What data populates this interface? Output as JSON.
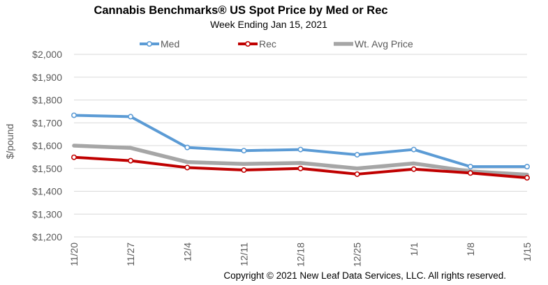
{
  "chart_data": {
    "type": "line",
    "title": "Cannabis Benchmarks® US Spot Price by Med or Rec",
    "subtitle": "Week Ending Jan 15, 2021",
    "ylabel": "$/pound",
    "xlabel": "",
    "categories": [
      "11/20",
      "11/27",
      "12/4",
      "12/11",
      "12/18",
      "12/25",
      "1/1",
      "1/8",
      "1/15"
    ],
    "yticks": [
      "$1,200",
      "$1,300",
      "$1,400",
      "$1,500",
      "$1,600",
      "$1,700",
      "$1,800",
      "$1,900",
      "$2,000"
    ],
    "ylim": [
      1200,
      2000
    ],
    "grid": true,
    "legend_position": "top",
    "series": [
      {
        "name": "Med",
        "color": "#5B9BD5",
        "values": [
          1733,
          1727,
          1592,
          1578,
          1583,
          1560,
          1583,
          1508,
          1508
        ]
      },
      {
        "name": "Rec",
        "color": "#C00000",
        "values": [
          1549,
          1534,
          1504,
          1493,
          1500,
          1475,
          1497,
          1480,
          1459
        ]
      },
      {
        "name": "Wt. Avg Price",
        "color": "#A6A6A6",
        "values": [
          1600,
          1590,
          1528,
          1520,
          1524,
          1500,
          1522,
          1487,
          1473
        ]
      }
    ],
    "footer": "Copyright © 2021 New Leaf Data Services, LLC. All rights reserved."
  }
}
